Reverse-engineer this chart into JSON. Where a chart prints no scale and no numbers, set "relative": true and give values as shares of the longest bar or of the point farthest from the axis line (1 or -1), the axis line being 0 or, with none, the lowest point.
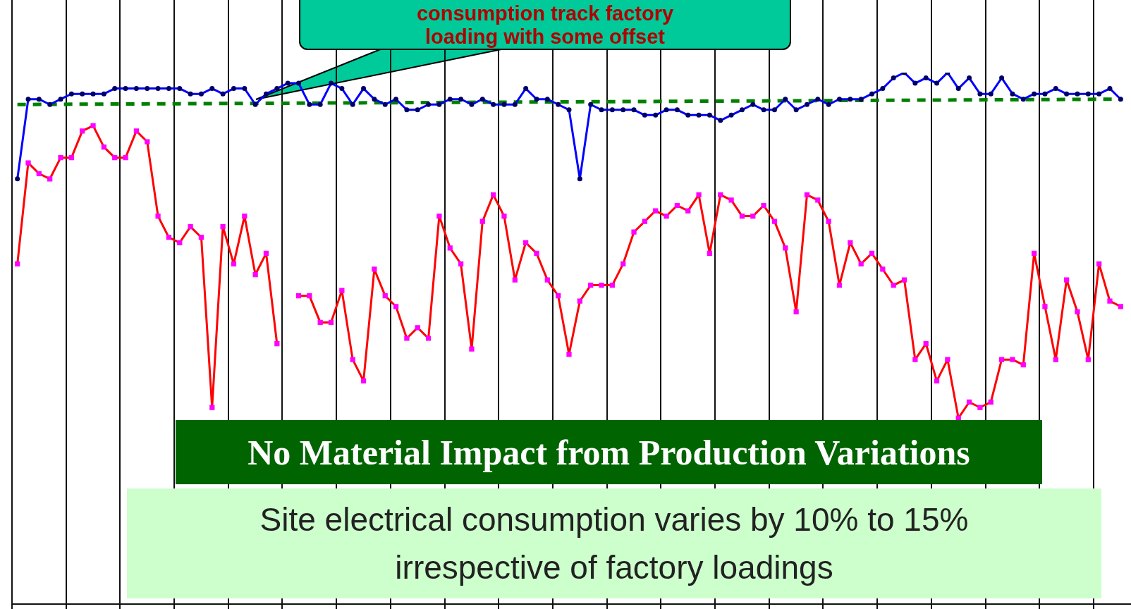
{
  "chart_data": {
    "type": "line",
    "relative": true,
    "grid": "x",
    "legend": false,
    "categories": [
      null,
      null,
      null,
      null,
      null,
      null,
      null,
      null,
      null,
      null,
      null,
      null,
      null,
      null,
      null,
      null,
      null,
      null,
      null,
      null,
      null,
      null,
      null,
      null,
      null,
      null,
      null,
      null,
      null,
      null,
      null,
      null,
      null,
      null,
      null,
      null,
      null,
      null,
      null,
      null,
      null,
      null,
      null,
      null,
      null,
      null,
      null,
      null,
      null,
      null,
      null,
      null,
      null,
      null,
      null,
      null,
      null,
      null,
      null,
      null,
      null,
      null,
      null,
      null,
      null,
      null,
      null,
      null,
      null,
      null,
      null,
      null,
      null,
      null,
      null,
      null,
      null,
      null,
      null,
      null,
      null,
      null,
      null,
      null,
      null,
      null,
      null,
      null,
      null,
      null,
      null,
      null,
      null,
      null,
      null,
      null,
      null,
      null,
      null,
      null,
      null,
      null,
      null
    ],
    "series": [
      {
        "color": "#0000ff",
        "marker": "circle",
        "values": [
          0.8,
          0.95,
          0.95,
          0.94,
          0.95,
          0.96,
          0.96,
          0.96,
          0.96,
          0.97,
          0.97,
          0.97,
          0.97,
          0.97,
          0.97,
          0.97,
          0.96,
          0.96,
          0.97,
          0.96,
          0.97,
          0.97,
          0.94,
          0.96,
          0.97,
          0.98,
          0.98,
          0.94,
          0.94,
          0.98,
          0.97,
          0.94,
          0.97,
          0.95,
          0.94,
          0.95,
          0.93,
          0.93,
          0.94,
          0.94,
          0.95,
          0.95,
          0.94,
          0.95,
          0.94,
          0.94,
          0.94,
          0.97,
          0.95,
          0.95,
          0.94,
          0.93,
          0.8,
          0.94,
          0.93,
          0.93,
          0.93,
          0.93,
          0.92,
          0.92,
          0.93,
          0.93,
          0.92,
          0.92,
          0.92,
          0.91,
          0.92,
          0.93,
          0.94,
          0.93,
          0.93,
          0.95,
          0.93,
          0.94,
          0.95,
          0.94,
          0.95,
          0.95,
          0.95,
          0.96,
          0.97,
          0.99,
          1.0,
          0.98,
          0.99,
          0.98,
          1.0,
          0.97,
          0.99,
          0.96,
          0.96,
          0.99,
          0.96,
          0.95,
          0.96,
          0.96,
          0.97,
          0.96,
          0.96,
          0.96,
          0.96,
          0.97,
          0.95
        ]
      },
      {
        "color": "#ff0000",
        "marker": "square",
        "values": [
          0.64,
          0.83,
          0.81,
          0.8,
          0.84,
          0.84,
          0.89,
          0.9,
          0.86,
          0.84,
          0.84,
          0.89,
          0.87,
          0.73,
          0.69,
          0.68,
          0.71,
          0.69,
          0.37,
          0.71,
          0.64,
          0.73,
          0.62,
          0.66,
          0.49,
          null,
          0.58,
          0.58,
          0.53,
          0.53,
          0.59,
          0.46,
          0.42,
          0.63,
          0.58,
          0.56,
          0.5,
          0.52,
          0.5,
          0.73,
          0.67,
          0.64,
          0.48,
          0.72,
          0.77,
          0.73,
          0.61,
          0.68,
          0.66,
          0.61,
          0.58,
          0.47,
          0.57,
          0.6,
          0.6,
          0.6,
          0.64,
          0.7,
          0.72,
          0.74,
          0.73,
          0.75,
          0.74,
          0.77,
          0.66,
          0.77,
          0.76,
          0.73,
          0.73,
          0.75,
          0.72,
          0.67,
          0.55,
          0.77,
          0.76,
          0.72,
          0.6,
          0.68,
          0.64,
          0.66,
          0.63,
          0.6,
          0.61,
          0.46,
          0.49,
          0.42,
          0.46,
          0.35,
          0.38,
          0.37,
          0.38,
          0.46,
          0.46,
          0.45,
          0.66,
          0.56,
          0.46,
          0.61,
          0.55,
          0.46,
          0.64,
          0.57,
          0.56
        ]
      },
      {
        "color": "#008000",
        "line_style": "dashed",
        "values": [
          0.94,
          null,
          null,
          null,
          null,
          null,
          null,
          null,
          null,
          null,
          null,
          null,
          null,
          null,
          null,
          null,
          null,
          null,
          null,
          null,
          null,
          null,
          null,
          null,
          null,
          null,
          null,
          null,
          null,
          null,
          null,
          null,
          null,
          null,
          null,
          null,
          null,
          null,
          null,
          null,
          null,
          null,
          null,
          null,
          null,
          null,
          null,
          null,
          null,
          null,
          null,
          null,
          null,
          null,
          null,
          null,
          null,
          null,
          null,
          null,
          null,
          null,
          null,
          null,
          null,
          null,
          null,
          null,
          null,
          null,
          null,
          null,
          null,
          null,
          null,
          null,
          null,
          null,
          null,
          null,
          null,
          null,
          null,
          null,
          null,
          null,
          null,
          null,
          null,
          null,
          null,
          null,
          null,
          null,
          null,
          null,
          null,
          null,
          null,
          null,
          null,
          null,
          0.95
        ]
      }
    ],
    "annotations": [
      "consumption track factory loading with some offset",
      "No Material Impact from Production Variations",
      "Site electrical consumption varies by 10% to 15% irrespective of factory loadings"
    ]
  }
}
